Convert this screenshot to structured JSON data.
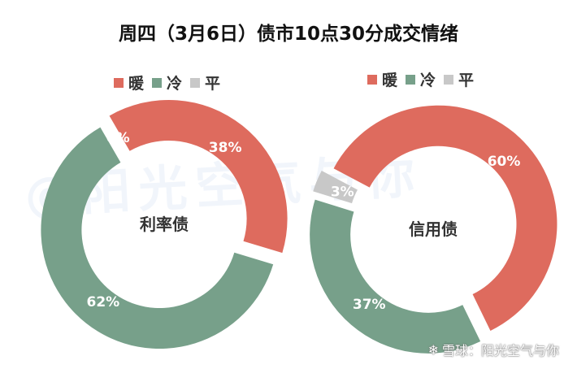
{
  "title": "周四（3月6日）债市10点30分成交情绪",
  "footer_text": "雪球：阳光空气与你",
  "watermark_text": "@阳光空气与你",
  "legend": [
    {
      "label": "暖",
      "color": "#DE6B5E"
    },
    {
      "label": "冷",
      "color": "#77A08A"
    },
    {
      "label": "平",
      "color": "#C8C8C8"
    }
  ],
  "chart_data": [
    {
      "type": "pie",
      "center_label": "利率债",
      "slices": [
        {
          "name": "暖",
          "value": 38,
          "label": "38%",
          "color": "#DE6B5E"
        },
        {
          "name": "冷",
          "value": 62,
          "label": "62%",
          "color": "#77A08A"
        },
        {
          "name": "平",
          "value": 0,
          "label": "0%",
          "color": "#C8C8C8"
        }
      ]
    },
    {
      "type": "pie",
      "center_label": "信用债",
      "slices": [
        {
          "name": "暖",
          "value": 60,
          "label": "60%",
          "color": "#DE6B5E"
        },
        {
          "name": "冷",
          "value": 37,
          "label": "37%",
          "color": "#77A08A"
        },
        {
          "name": "平",
          "value": 3,
          "label": "3%",
          "color": "#C8C8C8"
        }
      ]
    }
  ]
}
